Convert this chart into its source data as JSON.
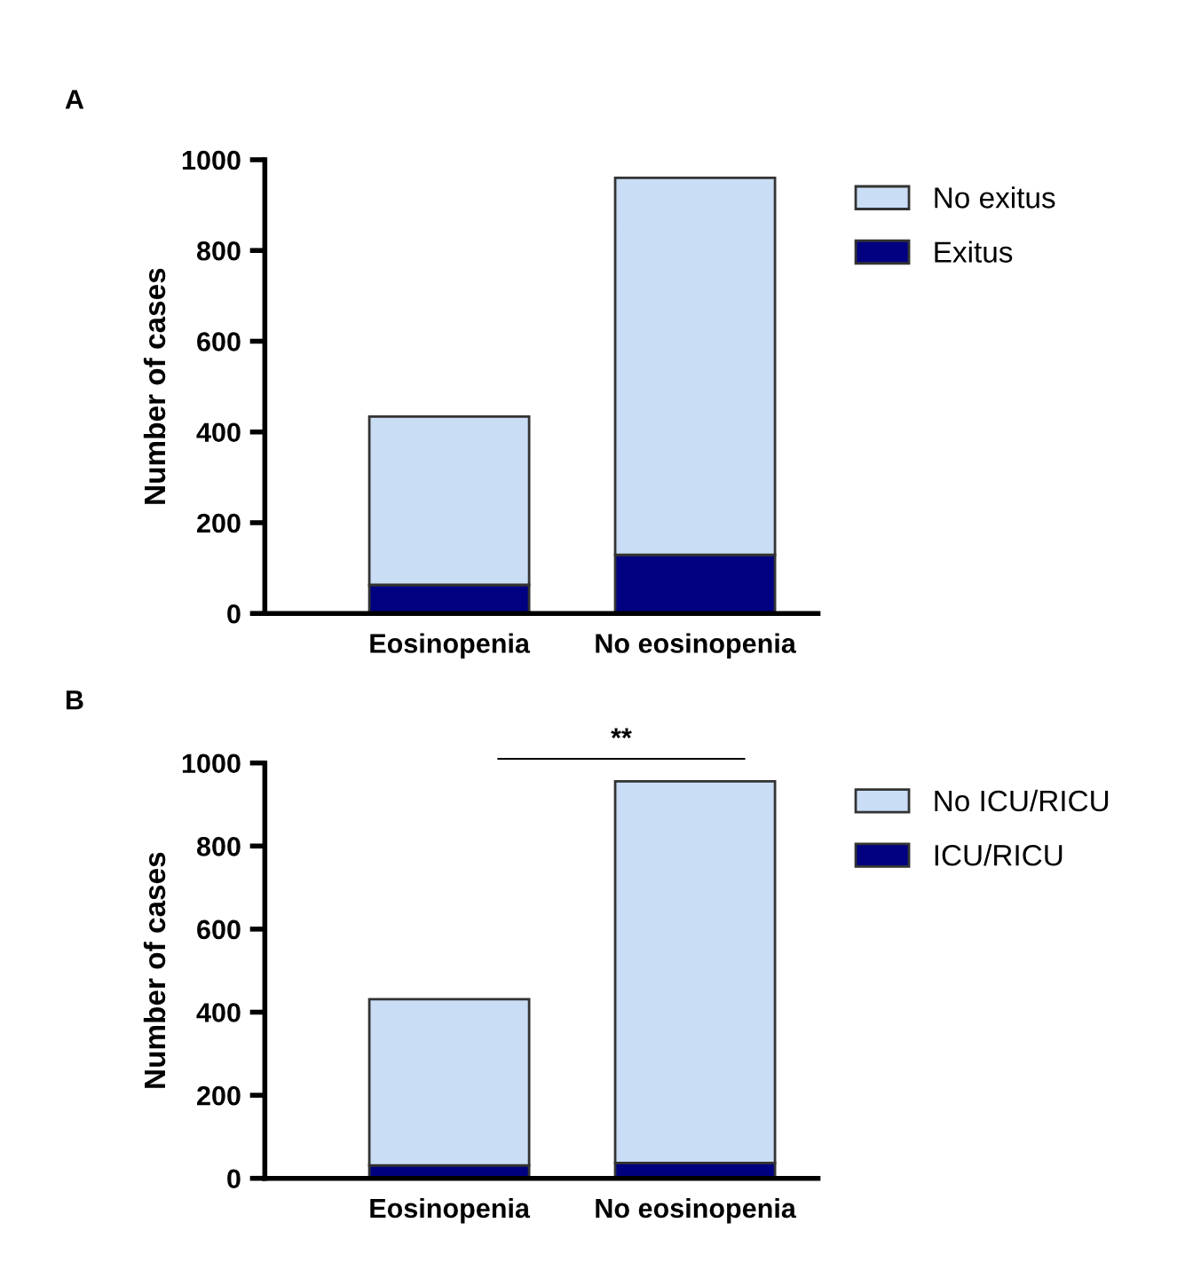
{
  "chart_data": [
    {
      "type": "bar",
      "title": "A",
      "ylabel": "Number of cases",
      "categories": [
        "Eosinopenia",
        "No eosinopenia"
      ],
      "stacked": true,
      "ylim": [
        0,
        1000
      ],
      "yticks": [
        0,
        200,
        400,
        600,
        800,
        1000
      ],
      "grid": false,
      "legend": "right",
      "series": [
        {
          "name": "Exitus",
          "color": "#000080",
          "values": [
            63,
            129
          ]
        },
        {
          "name": "No exitus",
          "color": "#c9ddf5",
          "values": [
            371,
            831
          ]
        }
      ]
    },
    {
      "type": "bar",
      "title": "B",
      "ylabel": "Number of cases",
      "categories": [
        "Eosinopenia",
        "No eosinopenia"
      ],
      "stacked": true,
      "ylim": [
        0,
        1000
      ],
      "yticks": [
        0,
        200,
        400,
        600,
        800,
        1000
      ],
      "grid": false,
      "legend": "right",
      "annotations": [
        "**"
      ],
      "series": [
        {
          "name": "ICU/RICU",
          "color": "#000080",
          "values": [
            31,
            37
          ]
        },
        {
          "name": "No ICU/RICU",
          "color": "#c9ddf5",
          "values": [
            400,
            919
          ]
        }
      ]
    }
  ]
}
